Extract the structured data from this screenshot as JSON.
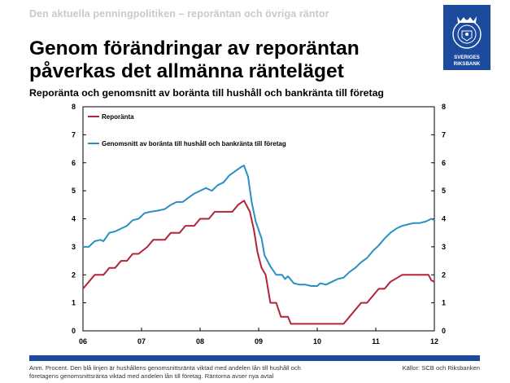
{
  "header": "Den aktuella penningpolitiken – reporäntan och övriga räntor",
  "title_line1": "Genom förändringar av reporäntan",
  "title_line2": "påverkas det allmänna ränteläget",
  "subtitle": "Reporänta och genomsnitt av boränta till hushåll och bankränta till företag",
  "logo_text_line1": "SVERIGES",
  "logo_text_line2": "RIKSBANK",
  "note_line1": "Anm. Procent. Den blå linjen är hushållens genomsnittsränta viktad med andelen lån till hushåll och",
  "note_line2": "företagens genomsnittsränta viktad med andelen lån till företag. Räntorna avser nya avtal",
  "source": "Källor: SCB och Riksbanken",
  "colors": {
    "brand_blue": "#1c4a9c",
    "repo": "#b3243a",
    "avg": "#2a8fc6"
  },
  "chart_data": {
    "type": "line",
    "x_ticks": [
      "06",
      "07",
      "08",
      "09",
      "10",
      "11",
      "12"
    ],
    "y_ticks": [
      "0",
      "1",
      "2",
      "3",
      "4",
      "5",
      "6",
      "7",
      "8"
    ],
    "ylim": [
      0,
      8
    ],
    "xlim": [
      2006.0,
      2012.0
    ],
    "series": [
      {
        "name": "Reporänta",
        "color": "#b3243a",
        "points": [
          [
            2006.0,
            1.5
          ],
          [
            2006.1,
            1.75
          ],
          [
            2006.2,
            2.0
          ],
          [
            2006.35,
            2.0
          ],
          [
            2006.45,
            2.25
          ],
          [
            2006.55,
            2.25
          ],
          [
            2006.65,
            2.5
          ],
          [
            2006.75,
            2.5
          ],
          [
            2006.85,
            2.75
          ],
          [
            2006.95,
            2.75
          ],
          [
            2007.1,
            3.0
          ],
          [
            2007.2,
            3.25
          ],
          [
            2007.4,
            3.25
          ],
          [
            2007.5,
            3.5
          ],
          [
            2007.65,
            3.5
          ],
          [
            2007.75,
            3.75
          ],
          [
            2007.9,
            3.75
          ],
          [
            2008.0,
            4.0
          ],
          [
            2008.15,
            4.0
          ],
          [
            2008.25,
            4.25
          ],
          [
            2008.55,
            4.25
          ],
          [
            2008.65,
            4.5
          ],
          [
            2008.75,
            4.65
          ],
          [
            2008.85,
            4.25
          ],
          [
            2008.92,
            3.6
          ],
          [
            2008.98,
            2.8
          ],
          [
            2009.05,
            2.25
          ],
          [
            2009.12,
            2.0
          ],
          [
            2009.2,
            1.0
          ],
          [
            2009.3,
            1.0
          ],
          [
            2009.38,
            0.5
          ],
          [
            2009.5,
            0.5
          ],
          [
            2009.55,
            0.25
          ],
          [
            2010.45,
            0.25
          ],
          [
            2010.55,
            0.5
          ],
          [
            2010.65,
            0.75
          ],
          [
            2010.75,
            1.0
          ],
          [
            2010.85,
            1.0
          ],
          [
            2010.95,
            1.25
          ],
          [
            2011.05,
            1.5
          ],
          [
            2011.15,
            1.5
          ],
          [
            2011.25,
            1.75
          ],
          [
            2011.45,
            2.0
          ],
          [
            2011.6,
            2.0
          ],
          [
            2011.9,
            2.0
          ],
          [
            2011.95,
            1.8
          ],
          [
            2012.0,
            1.75
          ]
        ]
      },
      {
        "name": "Genomsnitt av boränta till hushåll och bankränta till företag",
        "color": "#2a8fc6",
        "points": [
          [
            2006.0,
            3.0
          ],
          [
            2006.1,
            3.0
          ],
          [
            2006.2,
            3.2
          ],
          [
            2006.3,
            3.25
          ],
          [
            2006.35,
            3.2
          ],
          [
            2006.45,
            3.5
          ],
          [
            2006.55,
            3.55
          ],
          [
            2006.65,
            3.65
          ],
          [
            2006.75,
            3.75
          ],
          [
            2006.85,
            3.95
          ],
          [
            2006.95,
            4.0
          ],
          [
            2007.05,
            4.2
          ],
          [
            2007.15,
            4.25
          ],
          [
            2007.3,
            4.3
          ],
          [
            2007.4,
            4.35
          ],
          [
            2007.5,
            4.5
          ],
          [
            2007.6,
            4.6
          ],
          [
            2007.7,
            4.6
          ],
          [
            2007.8,
            4.75
          ],
          [
            2007.9,
            4.9
          ],
          [
            2008.0,
            5.0
          ],
          [
            2008.1,
            5.1
          ],
          [
            2008.2,
            5.0
          ],
          [
            2008.3,
            5.2
          ],
          [
            2008.4,
            5.3
          ],
          [
            2008.5,
            5.55
          ],
          [
            2008.6,
            5.7
          ],
          [
            2008.7,
            5.85
          ],
          [
            2008.75,
            5.9
          ],
          [
            2008.82,
            5.5
          ],
          [
            2008.88,
            4.6
          ],
          [
            2008.95,
            3.9
          ],
          [
            2009.05,
            3.3
          ],
          [
            2009.1,
            2.7
          ],
          [
            2009.2,
            2.3
          ],
          [
            2009.3,
            2.0
          ],
          [
            2009.4,
            2.0
          ],
          [
            2009.45,
            1.85
          ],
          [
            2009.5,
            1.95
          ],
          [
            2009.6,
            1.7
          ],
          [
            2009.7,
            1.65
          ],
          [
            2009.8,
            1.65
          ],
          [
            2009.9,
            1.6
          ],
          [
            2010.0,
            1.6
          ],
          [
            2010.05,
            1.7
          ],
          [
            2010.15,
            1.65
          ],
          [
            2010.25,
            1.75
          ],
          [
            2010.35,
            1.85
          ],
          [
            2010.45,
            1.9
          ],
          [
            2010.55,
            2.1
          ],
          [
            2010.65,
            2.25
          ],
          [
            2010.75,
            2.45
          ],
          [
            2010.85,
            2.6
          ],
          [
            2010.95,
            2.85
          ],
          [
            2011.05,
            3.05
          ],
          [
            2011.15,
            3.3
          ],
          [
            2011.25,
            3.5
          ],
          [
            2011.35,
            3.65
          ],
          [
            2011.45,
            3.75
          ],
          [
            2011.55,
            3.8
          ],
          [
            2011.65,
            3.85
          ],
          [
            2011.75,
            3.85
          ],
          [
            2011.85,
            3.9
          ],
          [
            2011.95,
            4.0
          ],
          [
            2012.0,
            3.95
          ]
        ]
      }
    ]
  }
}
